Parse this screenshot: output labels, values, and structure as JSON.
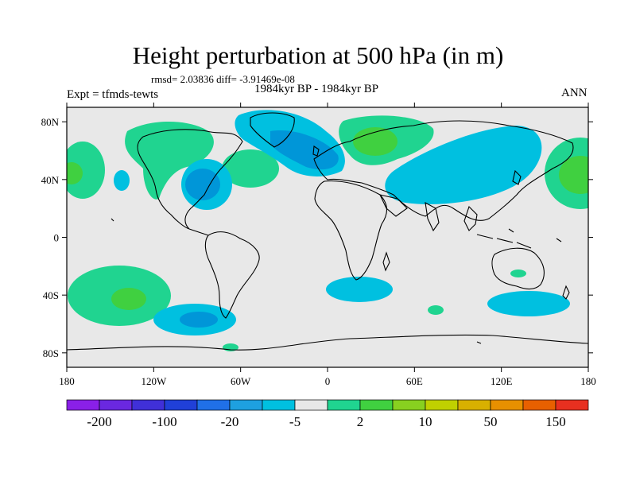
{
  "title": "Height perturbation at 500 hPa (in m)",
  "stats": "rmsd= 2.03836 diff= -3.91469e-08",
  "experiment": "Expt = tfmds-tewts",
  "period": "1984kyr BP - 1984kyr BP",
  "season": "ANN",
  "colors": {
    "land_neutral": "#e8e8e8",
    "neg_5": "#00c0e0",
    "neg_20": "#0096d8",
    "pos_2": "#20d490",
    "pos_10": "#40d040",
    "pos_50": "#88d020"
  },
  "map": {
    "lat_ticks": [
      {
        "value": 80,
        "label": "80N"
      },
      {
        "value": 40,
        "label": "40N"
      },
      {
        "value": 0,
        "label": "0"
      },
      {
        "value": -40,
        "label": "40S"
      },
      {
        "value": -80,
        "label": "80S"
      }
    ],
    "lon_ticks": [
      {
        "value": -180,
        "label": "180"
      },
      {
        "value": -120,
        "label": "120W"
      },
      {
        "value": -60,
        "label": "60W"
      },
      {
        "value": 0,
        "label": "0"
      },
      {
        "value": 60,
        "label": "60E"
      },
      {
        "value": 120,
        "label": "120E"
      },
      {
        "value": 180,
        "label": "180"
      }
    ]
  },
  "colorbar": {
    "colors": [
      "#8a20e8",
      "#6a28e0",
      "#4030d8",
      "#2040d8",
      "#2070e8",
      "#1ea0e0",
      "#00c0e0",
      "#e8e8e8",
      "#20d490",
      "#40d040",
      "#88d020",
      "#c0d000",
      "#d8b000",
      "#e89000",
      "#e86000",
      "#e83020"
    ],
    "labels": [
      {
        "index": 1,
        "text": "-200"
      },
      {
        "index": 3,
        "text": "-100"
      },
      {
        "index": 5,
        "text": "-20"
      },
      {
        "index": 7,
        "text": "-5"
      },
      {
        "index": 9,
        "text": "2"
      },
      {
        "index": 11,
        "text": "10"
      },
      {
        "index": 13,
        "text": "50"
      },
      {
        "index": 15,
        "text": "150"
      }
    ]
  }
}
